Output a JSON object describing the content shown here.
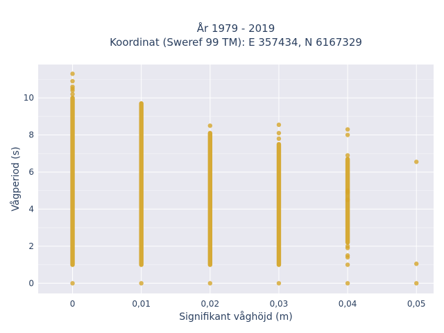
{
  "chart_data": {
    "type": "scatter",
    "title_lines": [
      "År 1979 - 2019",
      "Koordinat (Sweref 99 TM): E 357434, N 6167329"
    ],
    "xlabel": "Signifikant våghöjd (m)",
    "ylabel": "Vågperiod (s)",
    "xlim": [
      -0.005,
      0.0525
    ],
    "ylim": [
      -0.55,
      11.8
    ],
    "x_ticks": [
      0,
      0.01,
      0.02,
      0.03,
      0.04,
      0.05
    ],
    "x_tick_labels": [
      "0",
      "0,01",
      "0,02",
      "0,03",
      "0,04",
      "0,05"
    ],
    "y_ticks": [
      0,
      2,
      4,
      6,
      8,
      10
    ],
    "y_tick_labels": [
      "0",
      "2",
      "4",
      "6",
      "8",
      "10"
    ],
    "grid": true,
    "legend": "none",
    "background": "#e8e8f0",
    "marker_color": "#d4a52a",
    "series": [
      {
        "columns": [
          {
            "x": 0,
            "band": [
              1.0,
              10.0
            ],
            "points": [
              0,
              10.2,
              10.4,
              10.5,
              10.6,
              10.9,
              11.3
            ]
          },
          {
            "x": 0.01,
            "band": [
              1.0,
              9.7
            ],
            "points": [
              0
            ]
          },
          {
            "x": 0.02,
            "band": [
              1.0,
              8.1
            ],
            "points": [
              0,
              8.5
            ]
          },
          {
            "x": 0.03,
            "band": [
              1.0,
              7.5
            ],
            "points": [
              0,
              7.8,
              8.1,
              8.55
            ]
          },
          {
            "x": 0.04,
            "band": [
              2.2,
              6.7
            ],
            "points": [
              0,
              1.0,
              1.4,
              1.5,
              1.9,
              2.0,
              4.5,
              4.9,
              5.0,
              6.9,
              8.0,
              8.3
            ]
          },
          {
            "x": 0.05,
            "band": null,
            "points": [
              0,
              1.05,
              6.55
            ]
          }
        ]
      }
    ]
  }
}
